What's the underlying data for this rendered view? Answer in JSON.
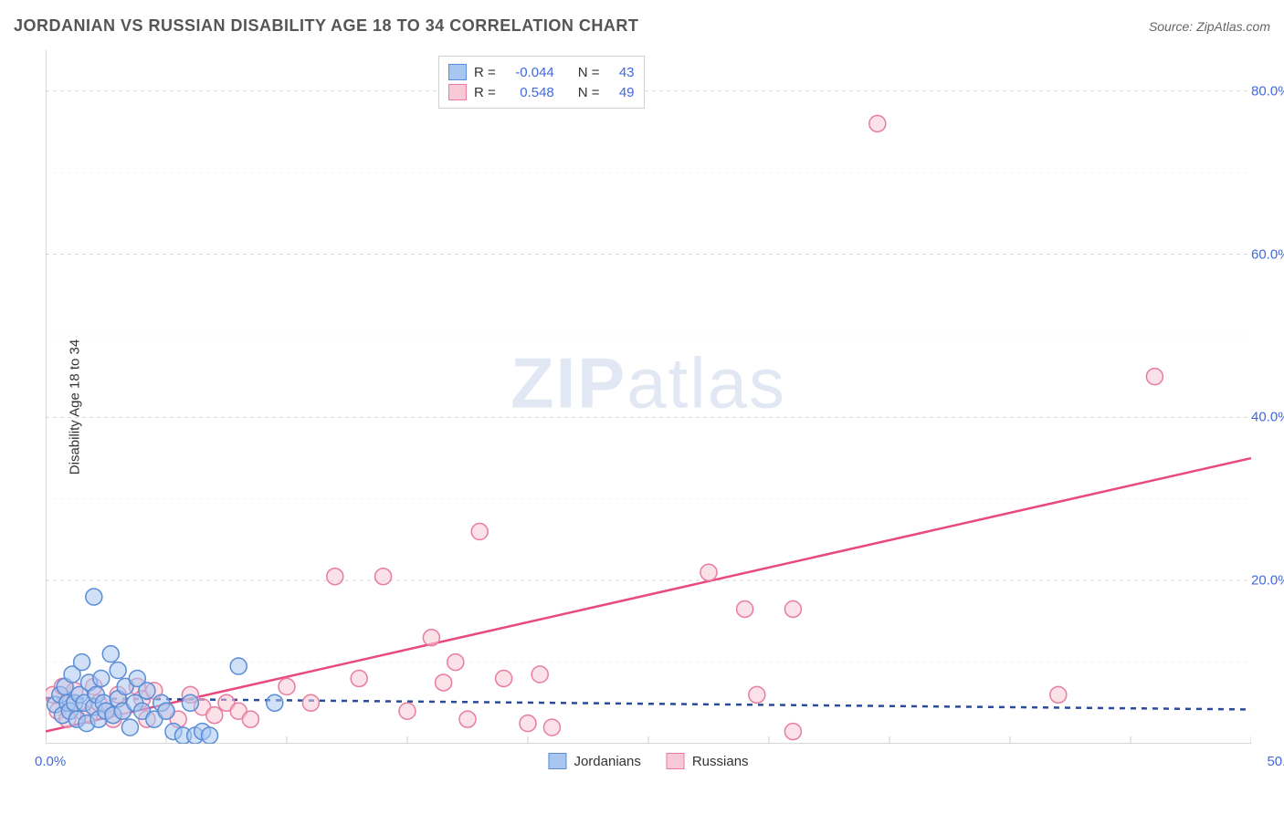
{
  "title": "JORDANIAN VS RUSSIAN DISABILITY AGE 18 TO 34 CORRELATION CHART",
  "source": "Source: ZipAtlas.com",
  "watermark": {
    "zip": "ZIP",
    "atlas": "atlas"
  },
  "ylabel": "Disability Age 18 to 34",
  "chart": {
    "type": "scatter",
    "xlim": [
      0,
      50
    ],
    "ylim": [
      0,
      85
    ],
    "xtick_min": "0.0%",
    "xtick_max": "50.0%",
    "xtick_positions": [
      0,
      5,
      10,
      15,
      20,
      25,
      30,
      35,
      40,
      45,
      50
    ],
    "ytick_major": [
      20,
      40,
      60,
      80
    ],
    "ytick_minor": [
      10,
      30,
      50,
      70
    ],
    "ytick_labels": [
      "20.0%",
      "40.0%",
      "60.0%",
      "80.0%"
    ],
    "grid_color": "#d8d8d8",
    "axis_color": "#cccccc",
    "tick_text_color": "#4169e1",
    "label_fontsize": 15,
    "marker_radius": 9,
    "marker_stroke_width": 1.5,
    "trend_line_width": 2.5,
    "dash_pattern": "6,6",
    "background_color": "#ffffff"
  },
  "series": {
    "jordanians": {
      "label": "Jordanians",
      "fill": "#a7c7f0",
      "stroke": "#5b8dd6",
      "trend_color": "#2a4b9b",
      "trend_dashed": true,
      "R": "-0.044",
      "N": "43",
      "trend": {
        "x1": 0,
        "y1": 5.6,
        "x2": 50,
        "y2": 4.2
      },
      "points": [
        [
          0.4,
          4.8
        ],
        [
          0.6,
          6.0
        ],
        [
          0.7,
          3.5
        ],
        [
          0.8,
          7.0
        ],
        [
          0.9,
          5.0
        ],
        [
          1.0,
          4.0
        ],
        [
          1.1,
          8.5
        ],
        [
          1.2,
          5.0
        ],
        [
          1.3,
          3.0
        ],
        [
          1.4,
          6.0
        ],
        [
          1.5,
          10.0
        ],
        [
          1.6,
          5.0
        ],
        [
          1.7,
          2.5
        ],
        [
          1.8,
          7.5
        ],
        [
          2.0,
          18.0
        ],
        [
          2.0,
          4.5
        ],
        [
          2.1,
          6.0
        ],
        [
          2.2,
          3.0
        ],
        [
          2.3,
          8.0
        ],
        [
          2.4,
          5.0
        ],
        [
          2.5,
          4.0
        ],
        [
          2.7,
          11.0
        ],
        [
          2.8,
          3.5
        ],
        [
          3.0,
          9.0
        ],
        [
          3.0,
          5.5
        ],
        [
          3.2,
          4.0
        ],
        [
          3.3,
          7.0
        ],
        [
          3.5,
          2.0
        ],
        [
          3.7,
          5.0
        ],
        [
          3.8,
          8.0
        ],
        [
          4.0,
          4.0
        ],
        [
          4.2,
          6.5
        ],
        [
          4.5,
          3.0
        ],
        [
          4.8,
          5.0
        ],
        [
          5.0,
          4.0
        ],
        [
          5.3,
          1.5
        ],
        [
          5.7,
          1.0
        ],
        [
          6.0,
          5.0
        ],
        [
          6.2,
          1.0
        ],
        [
          6.5,
          1.5
        ],
        [
          6.8,
          1.0
        ],
        [
          8.0,
          9.5
        ],
        [
          9.5,
          5.0
        ]
      ]
    },
    "russians": {
      "label": "Russians",
      "fill": "#f7c8d6",
      "stroke": "#e87ca1",
      "trend_color": "#e84a7f",
      "trend_dashed": false,
      "R": "0.548",
      "N": "49",
      "trend": {
        "x1": 0,
        "y1": 1.5,
        "x2": 50,
        "y2": 35.0
      },
      "points": [
        [
          0.3,
          6.0
        ],
        [
          0.5,
          4.0
        ],
        [
          0.7,
          7.0
        ],
        [
          0.9,
          3.0
        ],
        [
          1.0,
          5.0
        ],
        [
          1.2,
          6.5
        ],
        [
          1.5,
          4.0
        ],
        [
          1.8,
          3.5
        ],
        [
          2.0,
          7.0
        ],
        [
          2.2,
          5.0
        ],
        [
          2.5,
          4.0
        ],
        [
          2.8,
          3.0
        ],
        [
          3.0,
          6.0
        ],
        [
          3.2,
          4.0
        ],
        [
          3.8,
          7.0
        ],
        [
          4.0,
          5.5
        ],
        [
          4.2,
          3.0
        ],
        [
          4.5,
          6.5
        ],
        [
          5.0,
          4.0
        ],
        [
          5.5,
          3.0
        ],
        [
          6.0,
          6.0
        ],
        [
          6.5,
          4.5
        ],
        [
          7.0,
          3.5
        ],
        [
          7.5,
          5.0
        ],
        [
          8.0,
          4.0
        ],
        [
          8.5,
          3.0
        ],
        [
          10.0,
          7.0
        ],
        [
          11.0,
          5.0
        ],
        [
          12.0,
          20.5
        ],
        [
          13.0,
          8.0
        ],
        [
          14.0,
          20.5
        ],
        [
          15.0,
          4.0
        ],
        [
          16.0,
          13.0
        ],
        [
          16.5,
          7.5
        ],
        [
          17.0,
          10.0
        ],
        [
          17.5,
          3.0
        ],
        [
          18.0,
          26.0
        ],
        [
          19.0,
          8.0
        ],
        [
          20.0,
          2.5
        ],
        [
          20.5,
          8.5
        ],
        [
          21.0,
          2.0
        ],
        [
          27.5,
          21.0
        ],
        [
          29.0,
          16.5
        ],
        [
          29.5,
          6.0
        ],
        [
          31.0,
          16.5
        ],
        [
          31.0,
          1.5
        ],
        [
          34.5,
          76.0
        ],
        [
          42.0,
          6.0
        ],
        [
          46.0,
          45.0
        ]
      ]
    }
  },
  "stats_labels": {
    "R": "R =",
    "N": "N ="
  }
}
